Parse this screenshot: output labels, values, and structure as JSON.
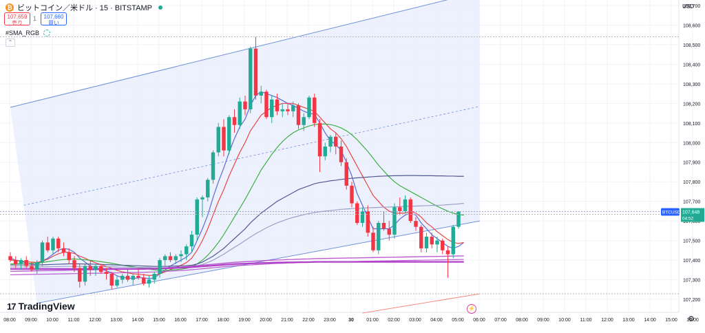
{
  "header": {
    "coin_symbol": "₿",
    "title": "ビットコイン／米ドル · 15 · BITSTAMP",
    "sell_price": "107,659",
    "sell_label": "売り",
    "spread": "1",
    "buy_price": "107,660",
    "buy_label": "買い",
    "indicator": "#SMA_RGB",
    "currency": "USD"
  },
  "branding": {
    "logo": "TradingView",
    "logo_mark": "17"
  },
  "price_tag": {
    "symbol": "BTCUSD",
    "price": "107,648",
    "countdown": "04:52"
  },
  "colors": {
    "up": "#22ab94",
    "down": "#f23645",
    "channel_fill": "#e8eefc",
    "channel_line": "#6d8fd9",
    "sma_fast": "#5b6bd6",
    "sma_mid": "#e64545",
    "sma_slow": "#3cb043",
    "sma_long1": "#52598f",
    "sma_long2": "#9aa0c7",
    "sma_magenta": "#b040c8"
  },
  "chart_data": {
    "type": "candlestick",
    "title": "ビットコイン／米ドル · 15 · BITSTAMP",
    "y_ticks": [
      107200,
      107300,
      107400,
      107500,
      107600,
      107700,
      107800,
      107900,
      108000,
      108100,
      108200,
      108300,
      108400,
      108500,
      108600,
      108700
    ],
    "ylim": [
      107170,
      108730
    ],
    "x_ticks": [
      "08:00",
      "09:00",
      "10:00",
      "11:00",
      "12:00",
      "13:00",
      "14:00",
      "15:00",
      "16:00",
      "17:00",
      "18:00",
      "19:00",
      "20:00",
      "21:00",
      "22:00",
      "23:00",
      "30",
      "01:00",
      "02:00",
      "03:00",
      "04:00",
      "05:00",
      "06:00",
      "07:00",
      "08:00",
      "09:00",
      "10:00",
      "11:00",
      "12:00",
      "13:00",
      "14:00",
      "15:00",
      "16:00"
    ],
    "x_start": "08:00",
    "bar_minutes": 15,
    "candles": [
      [
        107420,
        107440,
        107390,
        107400
      ],
      [
        107400,
        107420,
        107360,
        107380
      ],
      [
        107380,
        107410,
        107350,
        107400
      ],
      [
        107400,
        107420,
        107360,
        107370
      ],
      [
        107370,
        107390,
        107340,
        107350
      ],
      [
        107350,
        107400,
        107330,
        107390
      ],
      [
        107390,
        107500,
        107370,
        107490
      ],
      [
        107490,
        107520,
        107440,
        107450
      ],
      [
        107450,
        107520,
        107430,
        107510
      ],
      [
        107510,
        107520,
        107440,
        107460
      ],
      [
        107460,
        107490,
        107420,
        107440
      ],
      [
        107440,
        107460,
        107380,
        107400
      ],
      [
        107400,
        107420,
        107340,
        107360
      ],
      [
        107360,
        107380,
        107260,
        107290
      ],
      [
        107290,
        107380,
        107270,
        107370
      ],
      [
        107370,
        107400,
        107320,
        107350
      ],
      [
        107350,
        107380,
        107320,
        107370
      ],
      [
        107370,
        107380,
        107330,
        107340
      ],
      [
        107340,
        107360,
        107300,
        107330
      ],
      [
        107330,
        107340,
        107250,
        107270
      ],
      [
        107270,
        107320,
        107260,
        107300
      ],
      [
        107300,
        107330,
        107280,
        107320
      ],
      [
        107320,
        107350,
        107290,
        107300
      ],
      [
        107300,
        107330,
        107270,
        107320
      ],
      [
        107320,
        107360,
        107300,
        107310
      ],
      [
        107310,
        107330,
        107270,
        107280
      ],
      [
        107280,
        107320,
        107260,
        107300
      ],
      [
        107300,
        107340,
        107280,
        107330
      ],
      [
        107330,
        107410,
        107310,
        107400
      ],
      [
        107400,
        107430,
        107370,
        107420
      ],
      [
        107420,
        107440,
        107390,
        107400
      ],
      [
        107400,
        107430,
        107380,
        107420
      ],
      [
        107420,
        107450,
        107390,
        107430
      ],
      [
        107430,
        107480,
        107400,
        107470
      ],
      [
        107470,
        107550,
        107440,
        107530
      ],
      [
        107530,
        107720,
        107500,
        107710
      ],
      [
        107710,
        107730,
        107620,
        107720
      ],
      [
        107720,
        107820,
        107700,
        107810
      ],
      [
        107810,
        107960,
        107790,
        107950
      ],
      [
        107950,
        108100,
        107930,
        108080
      ],
      [
        108080,
        108120,
        107930,
        107960
      ],
      [
        107960,
        108140,
        107940,
        108130
      ],
      [
        108130,
        108170,
        108050,
        108090
      ],
      [
        108090,
        108230,
        108070,
        108210
      ],
      [
        108210,
        108240,
        108140,
        108170
      ],
      [
        108170,
        108490,
        108150,
        108480
      ],
      [
        108480,
        108540,
        108220,
        108240
      ],
      [
        108240,
        108290,
        108200,
        108260
      ],
      [
        108260,
        108270,
        108120,
        108130
      ],
      [
        108130,
        108240,
        108100,
        108220
      ],
      [
        108220,
        108250,
        108140,
        108160
      ],
      [
        108160,
        108200,
        108130,
        108170
      ],
      [
        108170,
        108200,
        108140,
        108160
      ],
      [
        108160,
        108210,
        108130,
        108190
      ],
      [
        108190,
        108200,
        108070,
        108090
      ],
      [
        108090,
        108150,
        108060,
        108130
      ],
      [
        108130,
        108240,
        108120,
        108230
      ],
      [
        108230,
        108250,
        108080,
        108100
      ],
      [
        108100,
        108120,
        107850,
        107930
      ],
      [
        107930,
        108000,
        107910,
        107980
      ],
      [
        107980,
        108040,
        107950,
        108030
      ],
      [
        108030,
        108050,
        107940,
        107980
      ],
      [
        107980,
        108010,
        107880,
        107900
      ],
      [
        107900,
        107920,
        107760,
        107780
      ],
      [
        107780,
        107800,
        107670,
        107690
      ],
      [
        107690,
        107700,
        107580,
        107590
      ],
      [
        107590,
        107670,
        107570,
        107650
      ],
      [
        107650,
        107680,
        107520,
        107540
      ],
      [
        107540,
        107570,
        107440,
        107450
      ],
      [
        107450,
        107600,
        107430,
        107590
      ],
      [
        107590,
        107650,
        107550,
        107560
      ],
      [
        107560,
        107600,
        107500,
        107530
      ],
      [
        107530,
        107690,
        107510,
        107670
      ],
      [
        107670,
        107720,
        107630,
        107650
      ],
      [
        107650,
        107730,
        107640,
        107710
      ],
      [
        107710,
        107720,
        107590,
        107600
      ],
      [
        107600,
        107620,
        107550,
        107570
      ],
      [
        107570,
        107580,
        107440,
        107460
      ],
      [
        107460,
        107540,
        107440,
        107520
      ],
      [
        107520,
        107540,
        107460,
        107480
      ],
      [
        107480,
        107520,
        107440,
        107500
      ],
      [
        107500,
        107510,
        107430,
        107450
      ],
      [
        107450,
        107470,
        107310,
        107430
      ],
      [
        107430,
        107580,
        107410,
        107570
      ],
      [
        107570,
        107650,
        107560,
        107648
      ]
    ],
    "channel": {
      "upper": [
        [
          0,
          108180
        ],
        [
          88,
          108770
        ]
      ],
      "lower": [
        [
          5,
          107180
        ],
        [
          88,
          107600
        ]
      ],
      "mid_dashed": true
    },
    "moving_averages": [
      {
        "color_key": "sma_fast",
        "values": [
          107410,
          107400,
          107395,
          107385,
          107380,
          107375,
          107395,
          107410,
          107430,
          107450,
          107460,
          107455,
          107440,
          107410,
          107390,
          107370,
          107360,
          107355,
          107345,
          107335,
          107320,
          107310,
          107310,
          107305,
          107310,
          107310,
          107305,
          107310,
          107330,
          107350,
          107370,
          107385,
          107400,
          107415,
          107440,
          107500,
          107560,
          107630,
          107720,
          107800,
          107870,
          107950,
          108020,
          108080,
          108120,
          108190,
          108240,
          108260,
          108250,
          108240,
          108230,
          108215,
          108200,
          108190,
          108175,
          108160,
          108150,
          108145,
          108100,
          108050,
          108010,
          107990,
          107960,
          107900,
          107830,
          107740,
          107680,
          107620,
          107560,
          107560,
          107560,
          107560,
          107580,
          107610,
          107630,
          107640,
          107630,
          107590,
          107560,
          107530,
          107510,
          107490,
          107470,
          107460,
          107470,
          107490
        ]
      },
      {
        "color_key": "sma_mid",
        "values": [
          107400,
          107398,
          107395,
          107392,
          107390,
          107388,
          107395,
          107405,
          107420,
          107432,
          107440,
          107440,
          107434,
          107420,
          107410,
          107397,
          107386,
          107377,
          107368,
          107358,
          107348,
          107340,
          107335,
          107330,
          107328,
          107325,
          107322,
          107322,
          107330,
          107340,
          107352,
          107362,
          107374,
          107387,
          107410,
          107450,
          107500,
          107560,
          107630,
          107700,
          107760,
          107830,
          107890,
          107950,
          108000,
          108060,
          108100,
          108140,
          108160,
          108180,
          108190,
          108200,
          108200,
          108200,
          108190,
          108180,
          108170,
          108160,
          108130,
          108100,
          108070,
          108050,
          108020,
          107980,
          107930,
          107880,
          107830,
          107780,
          107730,
          107700,
          107670,
          107650,
          107640,
          107640,
          107640,
          107650,
          107640,
          107620,
          107590,
          107570,
          107545,
          107525,
          107505,
          107490,
          107485,
          107490
        ]
      },
      {
        "color_key": "sma_slow",
        "values": [
          107380,
          107381,
          107382,
          107383,
          107384,
          107385,
          107388,
          107392,
          107396,
          107400,
          107403,
          107405,
          107406,
          107404,
          107402,
          107399,
          107396,
          107392,
          107388,
          107384,
          107379,
          107374,
          107370,
          107366,
          107362,
          107358,
          107354,
          107350,
          107349,
          107348,
          107349,
          107351,
          107354,
          107358,
          107365,
          107380,
          107400,
          107425,
          107455,
          107490,
          107530,
          107575,
          107620,
          107665,
          107710,
          107760,
          107810,
          107860,
          107900,
          107940,
          107975,
          108005,
          108030,
          108050,
          108065,
          108075,
          108085,
          108092,
          108095,
          108095,
          108092,
          108085,
          108075,
          108060,
          108040,
          108015,
          107985,
          107955,
          107920,
          107885,
          107855,
          107825,
          107800,
          107780,
          107765,
          107750,
          107735,
          107720,
          107705,
          107690,
          107675,
          107662,
          107650,
          107640,
          107633,
          107630
        ]
      },
      {
        "color_key": "sma_long1",
        "values": [
          107375,
          107375,
          107375,
          107375,
          107375,
          107375,
          107376,
          107377,
          107378,
          107379,
          107380,
          107381,
          107381,
          107381,
          107380,
          107380,
          107379,
          107378,
          107377,
          107376,
          107375,
          107374,
          107373,
          107372,
          107371,
          107370,
          107369,
          107368,
          107368,
          107368,
          107369,
          107370,
          107371,
          107372,
          107374,
          107380,
          107390,
          107405,
          107420,
          107440,
          107460,
          107485,
          107510,
          107535,
          107560,
          107590,
          107615,
          107640,
          107660,
          107680,
          107700,
          107715,
          107730,
          107745,
          107760,
          107770,
          107780,
          107790,
          107796,
          107800,
          107805,
          107808,
          107812,
          107815,
          107818,
          107820,
          107822,
          107824,
          107826,
          107828,
          107829,
          107830,
          107831,
          107831,
          107832,
          107832,
          107832,
          107831,
          107831,
          107831,
          107830,
          107830,
          107829,
          107829,
          107828,
          107828
        ]
      },
      {
        "color_key": "sma_long2",
        "values": [
          107365,
          107365,
          107365,
          107365,
          107365,
          107365,
          107366,
          107366,
          107367,
          107367,
          107368,
          107368,
          107368,
          107368,
          107368,
          107368,
          107367,
          107367,
          107366,
          107366,
          107365,
          107364,
          107364,
          107363,
          107363,
          107362,
          107362,
          107361,
          107361,
          107361,
          107362,
          107362,
          107363,
          107364,
          107366,
          107370,
          107378,
          107388,
          107400,
          107415,
          107430,
          107448,
          107465,
          107482,
          107500,
          107518,
          107535,
          107550,
          107565,
          107578,
          107590,
          107600,
          107610,
          107618,
          107625,
          107632,
          107638,
          107643,
          107647,
          107650,
          107653,
          107656,
          107659,
          107661,
          107663,
          107664,
          107665,
          107667,
          107668,
          107669,
          107670,
          107671,
          107672,
          107673,
          107674,
          107675,
          107676,
          107677,
          107678,
          107679,
          107680,
          107681,
          107683,
          107685,
          107687,
          107690
        ]
      },
      {
        "color_key": "sma_magenta",
        "values": [
          107355,
          107355,
          107355,
          107355,
          107355,
          107355,
          107355,
          107355,
          107355,
          107355,
          107355,
          107355,
          107355,
          107355,
          107355,
          107355,
          107355,
          107355,
          107355,
          107355,
          107355,
          107355,
          107355,
          107355,
          107355,
          107355,
          107356,
          107356,
          107357,
          107358,
          107359,
          107360,
          107361,
          107362,
          107364,
          107366,
          107368,
          107370,
          107372,
          107374,
          107376,
          107378,
          107380,
          107381,
          107382,
          107383,
          107384,
          107385,
          107386,
          107387,
          107388,
          107388,
          107389,
          107389,
          107390,
          107390,
          107390,
          107391,
          107391,
          107391,
          107391,
          107391,
          107391,
          107391,
          107391,
          107391,
          107391,
          107391,
          107391,
          107391,
          107391,
          107391,
          107391,
          107391,
          107391,
          107391,
          107391,
          107391,
          107391,
          107391,
          107391,
          107391,
          107391,
          107391,
          107391,
          107391
        ]
      }
    ],
    "last_price": 107648,
    "reference_price": 108540
  }
}
